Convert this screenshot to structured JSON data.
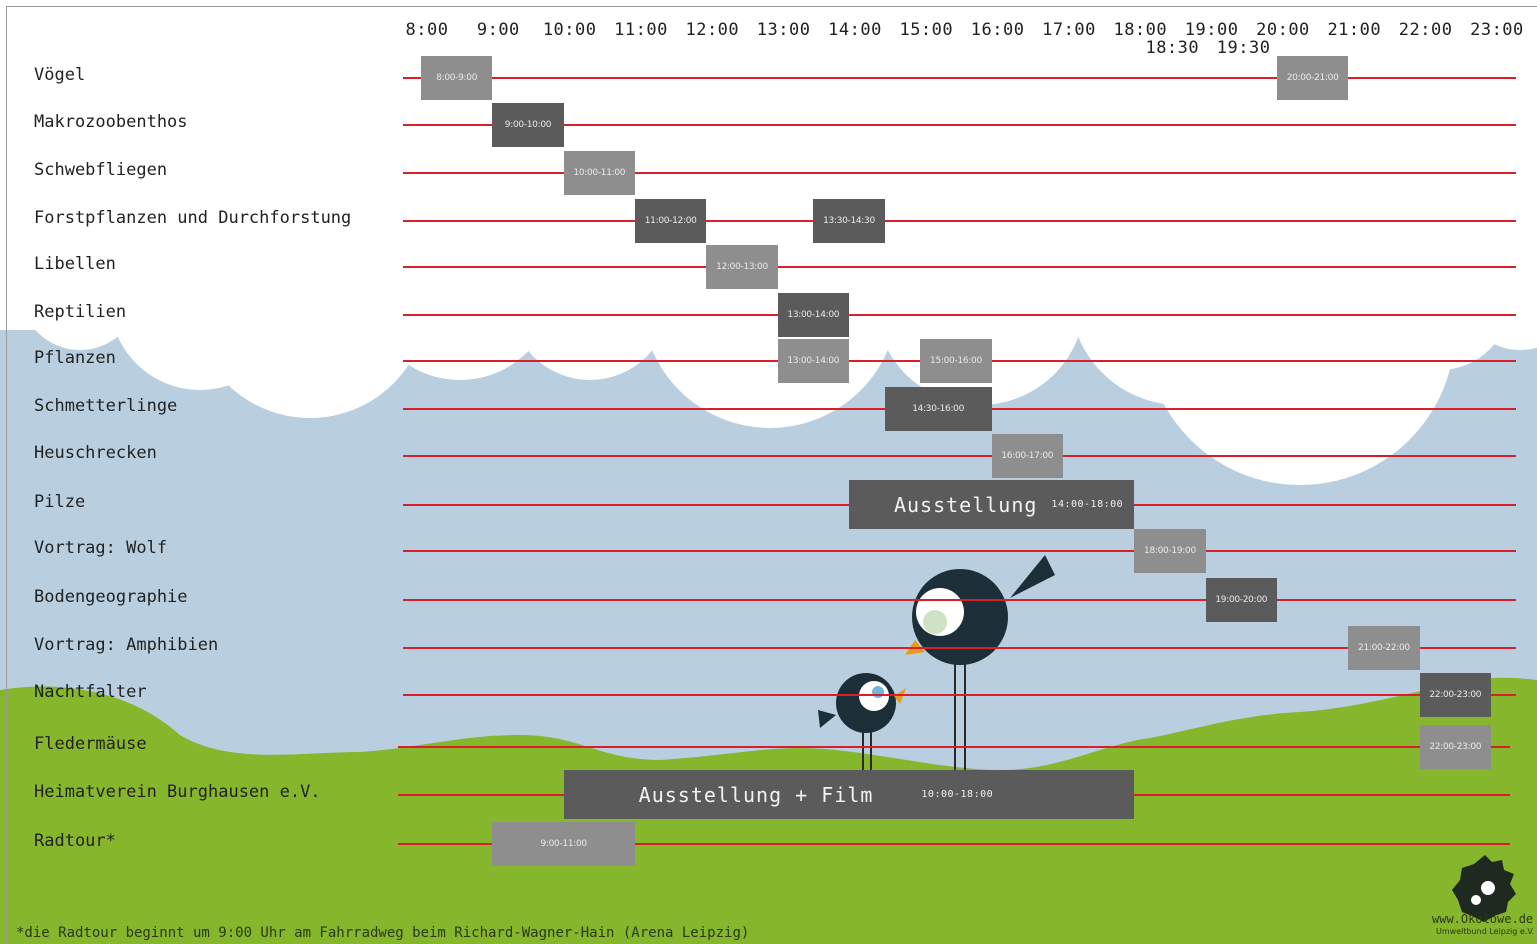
{
  "hours": [
    "8:00",
    "9:00",
    "10:00",
    "11:00",
    "12:00",
    "13:00",
    "14:00",
    "15:00",
    "16:00",
    "17:00",
    "18:00",
    "19:00",
    "20:00",
    "21:00",
    "22:00",
    "23:00"
  ],
  "sub_hours": [
    "18:30",
    "19:30"
  ],
  "rows": [
    {
      "label": "Vögel",
      "slots": [
        {
          "start": 8,
          "end": 9,
          "text": "8:00-9:00",
          "shade": "light"
        },
        {
          "start": 20,
          "end": 21,
          "text": "20:00-21:00",
          "shade": "light"
        }
      ]
    },
    {
      "label": "Makrozoobenthos",
      "slots": [
        {
          "start": 9,
          "end": 10,
          "text": "9:00-10:00",
          "shade": "dark"
        }
      ]
    },
    {
      "label": "Schwebfliegen",
      "slots": [
        {
          "start": 10,
          "end": 11,
          "text": "10:00-11:00",
          "shade": "light"
        }
      ]
    },
    {
      "label": "Forstpflanzen und Durchforstung",
      "slots": [
        {
          "start": 11,
          "end": 12,
          "text": "11:00-12:00",
          "shade": "dark"
        },
        {
          "start": 13.5,
          "end": 14.5,
          "text": "13:30-14:30",
          "shade": "dark"
        }
      ]
    },
    {
      "label": "Libellen",
      "slots": [
        {
          "start": 12,
          "end": 13,
          "text": "12:00-13:00",
          "shade": "light"
        }
      ]
    },
    {
      "label": "Reptilien",
      "slots": [
        {
          "start": 13,
          "end": 14,
          "text": "13:00-14:00",
          "shade": "dark"
        }
      ]
    },
    {
      "label": "Pflanzen",
      "slots": [
        {
          "start": 13,
          "end": 14,
          "text": "13:00-14:00",
          "shade": "light"
        },
        {
          "start": 15,
          "end": 16,
          "text": "15:00-16:00",
          "shade": "light"
        }
      ]
    },
    {
      "label": "Schmetterlinge",
      "slots": [
        {
          "start": 14.5,
          "end": 16,
          "text": "14:30-16:00",
          "shade": "dark"
        }
      ]
    },
    {
      "label": "Heuschrecken",
      "slots": [
        {
          "start": 16,
          "end": 17,
          "text": "16:00-17:00",
          "shade": "light"
        }
      ]
    },
    {
      "label": "Pilze",
      "slots": []
    },
    {
      "label": "Vortrag: Wolf",
      "slots": [
        {
          "start": 18,
          "end": 19,
          "text": "18:00-19:00",
          "shade": "light"
        }
      ]
    },
    {
      "label": "Bodengeographie",
      "slots": [
        {
          "start": 19,
          "end": 20,
          "text": "19:00-20:00",
          "shade": "dark"
        }
      ]
    },
    {
      "label": "Vortrag: Amphibien",
      "slots": [
        {
          "start": 21,
          "end": 22,
          "text": "21:00-22:00",
          "shade": "light"
        }
      ]
    },
    {
      "label": "Nachtfalter",
      "slots": [
        {
          "start": 22,
          "end": 23,
          "text": "22:00-23:00",
          "shade": "dark"
        }
      ]
    },
    {
      "label": "Fledermäuse",
      "slots": [
        {
          "start": 22,
          "end": 23,
          "text": "22:00-23:00",
          "shade": "light"
        }
      ]
    },
    {
      "label": "Heimatverein Burghausen e.V.",
      "slots": []
    },
    {
      "label": "Radtour*",
      "slots": [
        {
          "start": 9,
          "end": 11,
          "text": "9:00-11:00",
          "shade": "light"
        }
      ]
    }
  ],
  "events": [
    {
      "row_index": 9,
      "start": 14,
      "end": 18,
      "title": "Ausstellung",
      "time": "14:00-18:00"
    },
    {
      "row_index": 15,
      "start": 10,
      "end": 18,
      "title": "Ausstellung + Film",
      "time": "10:00-18:00"
    }
  ],
  "footnote": "*die Radtour beginnt um 9:00 Uhr am Fahrradweg beim Richard-Wagner-Hain (Arena Leipzig)",
  "logo": {
    "name": "ökolöwe-logo-icon",
    "text": "www.Ökolöwe.de",
    "subtext": "Umweltbund Leipzig e.V."
  },
  "colors": {
    "sky": "#b9cfe0",
    "cloud": "#ffffff",
    "grass": "#86b62c",
    "line": "#d7202b",
    "slot_dark": "#5b5b5b",
    "slot_light": "#8e8e8e"
  }
}
